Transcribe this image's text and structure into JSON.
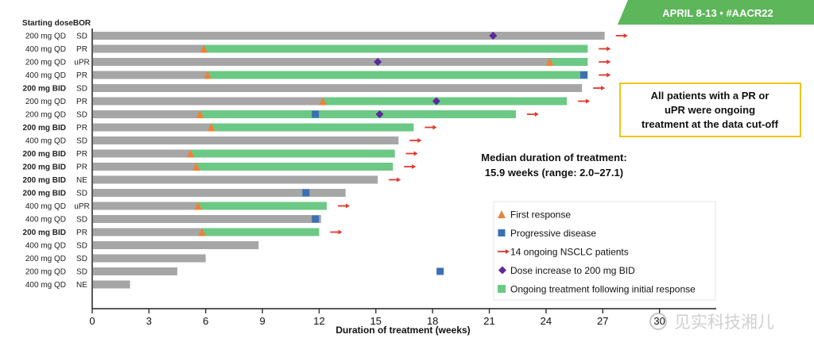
{
  "banner": {
    "text": "APRIL 8-13 • #AACR22",
    "color": "#5db65a"
  },
  "callout": {
    "lines": [
      "All patients with a PR or",
      "uPR were ongoing",
      "treatment at the data cut-off"
    ],
    "border_color": "#f0c419"
  },
  "median": {
    "lines": [
      "Median duration of treatment:",
      "15.9 weeks (range: 2.0–27.1)"
    ]
  },
  "watermark": {
    "text": "见实科技湘儿"
  },
  "chart_data": {
    "type": "swimmer",
    "xlabel": "Duration of treatment (weeks)",
    "xlim": [
      0,
      33
    ],
    "xticks": [
      0,
      3,
      6,
      9,
      12,
      15,
      18,
      21,
      24,
      27,
      30
    ],
    "grid": false,
    "column_headers": {
      "dose": "Starting dose",
      "bor": "BOR"
    },
    "colors": {
      "bar": "#a6a6a6",
      "response_segment": "#6cc985",
      "first_response": "#e8843a",
      "progressive_disease": "#3b6fb6",
      "ongoing_arrow": "#e03a2c",
      "dose_increase": "#5b2a9a"
    },
    "legend": {
      "placement": "bottom-right",
      "entries": [
        {
          "label": "First response",
          "marker": "triangle"
        },
        {
          "label": "Progressive disease",
          "marker": "square"
        },
        {
          "label": "14 ongoing NSCLC patients",
          "marker": "arrow"
        },
        {
          "label": "Dose increase to 200 mg BID",
          "marker": "diamond"
        },
        {
          "label": "Ongoing treatment following initial response",
          "marker": "green-square"
        }
      ]
    },
    "patients": [
      {
        "dose": "200 mg QD",
        "bor": "SD",
        "duration": 27.1,
        "first_response": null,
        "pd": null,
        "dose_increase": 21.2,
        "ongoing": true
      },
      {
        "dose": "400 mg QD",
        "bor": "PR",
        "duration": 26.2,
        "first_response": 5.9,
        "pd": null,
        "dose_increase": null,
        "ongoing": true
      },
      {
        "dose": "200 mg QD",
        "bor": "uPR",
        "duration": 26.2,
        "first_response": 24.2,
        "pd": null,
        "dose_increase": 15.1,
        "ongoing": true
      },
      {
        "dose": "400 mg QD",
        "bor": "PR",
        "duration": 26.2,
        "first_response": 6.1,
        "pd": 26.0,
        "dose_increase": null,
        "ongoing": true
      },
      {
        "dose": "200 mg BID",
        "bor": "SD",
        "duration": 25.9,
        "first_response": null,
        "pd": null,
        "dose_increase": null,
        "ongoing": true
      },
      {
        "dose": "200 mg QD",
        "bor": "PR",
        "duration": 25.1,
        "first_response": 12.2,
        "pd": null,
        "dose_increase": 18.2,
        "ongoing": true
      },
      {
        "dose": "200 mg QD",
        "bor": "SD",
        "duration": 22.4,
        "first_response": 5.7,
        "pd": 11.8,
        "dose_increase": 15.2,
        "ongoing": true
      },
      {
        "dose": "200 mg BID",
        "bor": "PR",
        "duration": 17.0,
        "first_response": 6.3,
        "pd": null,
        "dose_increase": null,
        "ongoing": true
      },
      {
        "dose": "400 mg QD",
        "bor": "SD",
        "duration": 16.2,
        "first_response": null,
        "pd": null,
        "dose_increase": null,
        "ongoing": true
      },
      {
        "dose": "200 mg BID",
        "bor": "PR",
        "duration": 16.0,
        "first_response": 5.2,
        "pd": null,
        "dose_increase": null,
        "ongoing": true
      },
      {
        "dose": "200 mg BID",
        "bor": "PR",
        "duration": 15.9,
        "first_response": 5.5,
        "pd": null,
        "dose_increase": null,
        "ongoing": true
      },
      {
        "dose": "200 mg BID",
        "bor": "NE",
        "duration": 15.1,
        "first_response": null,
        "pd": null,
        "dose_increase": null,
        "ongoing": true
      },
      {
        "dose": "200 mg BID",
        "bor": "SD",
        "duration": 13.4,
        "first_response": null,
        "pd": 11.3,
        "dose_increase": null,
        "ongoing": false
      },
      {
        "dose": "400 mg QD",
        "bor": "uPR",
        "duration": 12.4,
        "first_response": 5.6,
        "pd": null,
        "dose_increase": null,
        "ongoing": true
      },
      {
        "dose": "400 mg QD",
        "bor": "SD",
        "duration": 12.1,
        "first_response": null,
        "pd": 11.8,
        "dose_increase": null,
        "ongoing": false
      },
      {
        "dose": "200 mg BID",
        "bor": "PR",
        "duration": 12.0,
        "first_response": 5.8,
        "pd": null,
        "dose_increase": null,
        "ongoing": true
      },
      {
        "dose": "400 mg QD",
        "bor": "SD",
        "duration": 8.8,
        "first_response": null,
        "pd": null,
        "dose_increase": null,
        "ongoing": false
      },
      {
        "dose": "200 mg QD",
        "bor": "SD",
        "duration": 6.0,
        "first_response": null,
        "pd": null,
        "dose_increase": null,
        "ongoing": false
      },
      {
        "dose": "200 mg QD",
        "bor": "SD",
        "duration": 4.5,
        "first_response": null,
        "pd": 18.4,
        "dose_increase": null,
        "ongoing": false
      },
      {
        "dose": "400 mg QD",
        "bor": "NE",
        "duration": 2.0,
        "first_response": null,
        "pd": null,
        "dose_increase": null,
        "ongoing": false
      }
    ]
  }
}
